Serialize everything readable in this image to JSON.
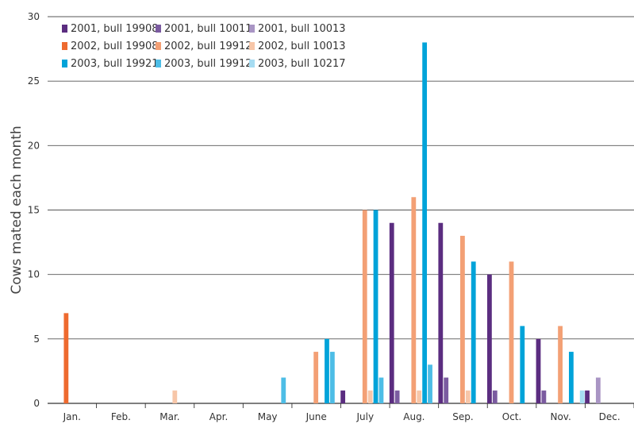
{
  "chart_data": {
    "type": "bar",
    "title": "",
    "xlabel": "",
    "ylabel": "Cows mated each month",
    "ylim": [
      0,
      30
    ],
    "yticks": [
      0,
      5,
      10,
      15,
      20,
      25,
      30
    ],
    "grid": true,
    "legend": "top-left",
    "categories": [
      "Jan.",
      "Feb.",
      "Mar.",
      "Apr.",
      "May",
      "June",
      "July",
      "Aug.",
      "Sep.",
      "Oct.",
      "Nov.",
      "Dec."
    ],
    "series": [
      {
        "name": "2001, bull 19908",
        "color": "#5b2d80",
        "values": [
          0,
          0,
          0,
          0,
          0,
          0,
          1,
          14,
          14,
          10,
          5,
          1
        ]
      },
      {
        "name": "2001, bull 10011",
        "color": "#7b5ba0",
        "values": [
          0,
          0,
          0,
          0,
          0,
          0,
          0,
          1,
          2,
          1,
          1,
          0
        ]
      },
      {
        "name": "2001, bull 10013",
        "color": "#a995c4",
        "values": [
          0,
          0,
          0,
          0,
          0,
          0,
          0,
          0,
          0,
          0,
          0,
          2
        ]
      },
      {
        "name": "2002, bull 19908",
        "color": "#ee6a2f",
        "values": [
          7,
          0,
          0,
          0,
          0,
          0,
          0,
          0,
          0,
          0,
          0,
          0
        ]
      },
      {
        "name": "2002, bull 19912",
        "color": "#f3a075",
        "values": [
          0,
          0,
          0,
          0,
          0,
          4,
          15,
          16,
          13,
          11,
          6,
          0
        ]
      },
      {
        "name": "2002, bull 10013",
        "color": "#f7c6a8",
        "values": [
          0,
          0,
          1,
          0,
          0,
          0,
          1,
          1,
          1,
          0,
          0,
          0
        ]
      },
      {
        "name": "2003, bull 19921",
        "color": "#00a3d9",
        "values": [
          0,
          0,
          0,
          0,
          0,
          5,
          15,
          28,
          11,
          6,
          4,
          0
        ]
      },
      {
        "name": "2003, bull 19912",
        "color": "#4dbde6",
        "values": [
          0,
          0,
          0,
          0,
          2,
          4,
          2,
          3,
          0,
          0,
          0,
          0
        ]
      },
      {
        "name": "2003, bull 10217",
        "color": "#a6dcf2",
        "values": [
          0,
          0,
          0,
          0,
          0,
          0,
          0,
          0,
          0,
          0,
          1,
          0
        ]
      }
    ]
  }
}
